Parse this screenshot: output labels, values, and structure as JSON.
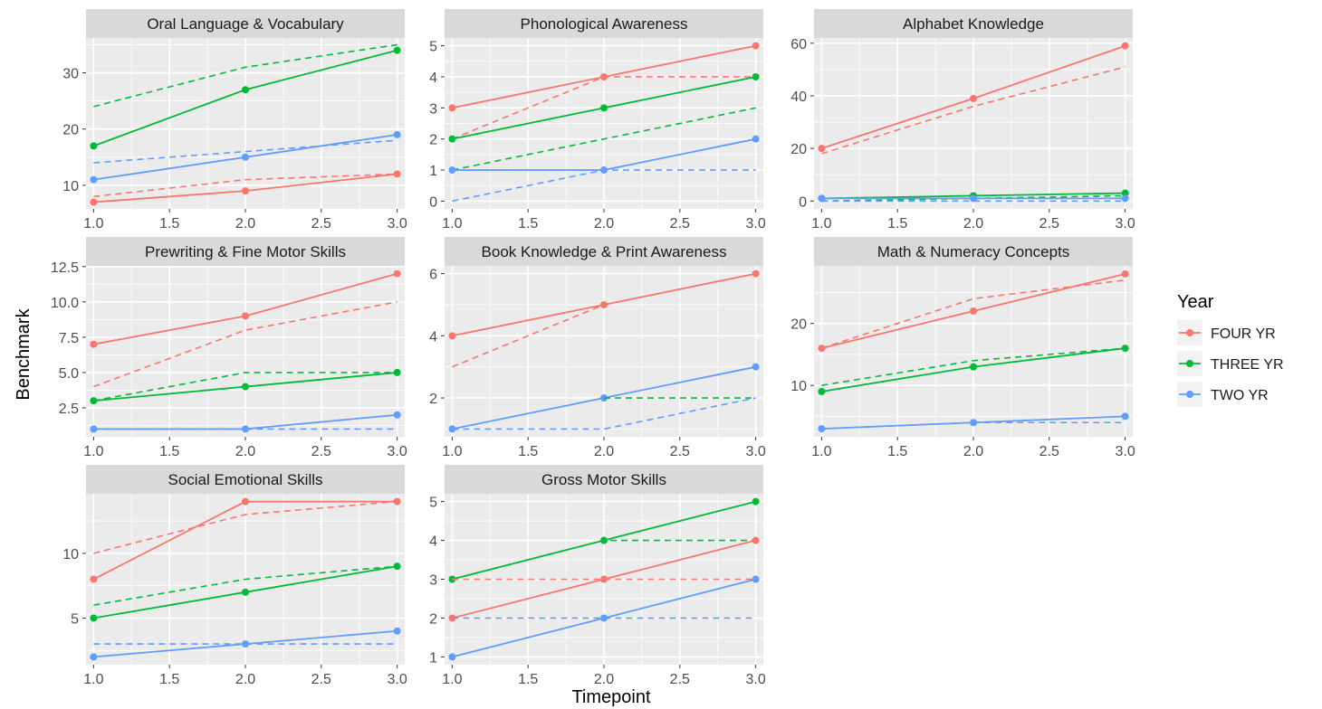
{
  "chart_data": {
    "type": "line",
    "xlabel": "Timepoint",
    "ylabel": "Benchmark",
    "x_ticks": [
      "1.0",
      "1.5",
      "2.0",
      "2.5",
      "3.0"
    ],
    "xlim": [
      0.95,
      3.05
    ],
    "legend": {
      "title": "Year",
      "placement": "right",
      "entries": [
        {
          "label": "FOUR YR",
          "color": "#F8766D"
        },
        {
          "label": "THREE YR",
          "color": "#00BA38"
        },
        {
          "label": "TWO YR",
          "color": "#619CFF"
        }
      ]
    },
    "line_styles": {
      "solid": "observed (points)",
      "dashed": "reference"
    },
    "panels": [
      {
        "title": "Oral Language & Vocabulary",
        "ylim": [
          5.8,
          36.2
        ],
        "y_ticks": [
          10,
          20,
          30
        ],
        "y_tick_labels": [
          "10",
          "20",
          "30"
        ],
        "series": [
          {
            "group": 0,
            "solid": [
              7,
              9,
              12
            ],
            "dashed": [
              8,
              11,
              12
            ]
          },
          {
            "group": 1,
            "solid": [
              17,
              27,
              34
            ],
            "dashed": [
              24,
              31,
              35
            ]
          },
          {
            "group": 2,
            "solid": [
              11,
              15,
              19
            ],
            "dashed": [
              14,
              16,
              18
            ]
          }
        ]
      },
      {
        "title": "Phonological Awareness",
        "ylim": [
          -0.25,
          5.25
        ],
        "y_ticks": [
          0,
          1,
          2,
          3,
          4,
          5
        ],
        "y_tick_labels": [
          "0",
          "1",
          "2",
          "3",
          "4",
          "5"
        ],
        "series": [
          {
            "group": 0,
            "solid": [
              3,
              4,
              5
            ],
            "dashed": [
              2,
              4,
              4
            ]
          },
          {
            "group": 1,
            "solid": [
              2,
              3,
              4
            ],
            "dashed": [
              1,
              2,
              3
            ]
          },
          {
            "group": 2,
            "solid": [
              1,
              1,
              2
            ],
            "dashed": [
              0,
              1,
              1
            ]
          }
        ]
      },
      {
        "title": "Alphabet Knowledge",
        "ylim": [
          -3,
          62
        ],
        "y_ticks": [
          0,
          20,
          40,
          60
        ],
        "y_tick_labels": [
          "0",
          "20",
          "40",
          "60"
        ],
        "series": [
          {
            "group": 0,
            "solid": [
              20,
              39,
              59
            ],
            "dashed": [
              18,
              36,
              51
            ]
          },
          {
            "group": 1,
            "solid": [
              1,
              2,
              3
            ],
            "dashed": [
              0,
              1,
              2
            ]
          },
          {
            "group": 2,
            "solid": [
              1,
              1,
              1
            ],
            "dashed": [
              0,
              0,
              0
            ]
          }
        ]
      },
      {
        "title": "Prewriting & Fine Motor Skills",
        "ylim": [
          0.45,
          12.55
        ],
        "y_ticks": [
          2.5,
          5,
          7.5,
          10,
          12.5
        ],
        "y_tick_labels": [
          "2.5",
          "5.0",
          "7.5",
          "10.0",
          "12.5"
        ],
        "series": [
          {
            "group": 0,
            "solid": [
              7,
              9,
              12
            ],
            "dashed": [
              4,
              8,
              10
            ]
          },
          {
            "group": 1,
            "solid": [
              3,
              4,
              5
            ],
            "dashed": [
              3,
              5,
              5
            ]
          },
          {
            "group": 2,
            "solid": [
              1,
              1,
              2
            ],
            "dashed": [
              1,
              1,
              1
            ]
          }
        ]
      },
      {
        "title": "Book Knowledge & Print Awareness",
        "ylim": [
          0.75,
          6.25
        ],
        "y_ticks": [
          2,
          4,
          6
        ],
        "y_tick_labels": [
          "2",
          "4",
          "6"
        ],
        "series": [
          {
            "group": 0,
            "solid": [
              4,
              5,
              6
            ],
            "dashed": [
              3,
              5,
              6
            ]
          },
          {
            "group": 2,
            "solid": [
              1,
              2,
              3
            ],
            "dashed": [
              1,
              1,
              2
            ]
          },
          {
            "group": 1,
            "solid": [],
            "dashed": [
              null,
              2,
              2
            ]
          }
        ]
      },
      {
        "title": "Math & Numeracy Concepts",
        "ylim": [
          1.7,
          29.3
        ],
        "y_ticks": [
          10,
          20
        ],
        "y_tick_labels": [
          "10",
          "20"
        ],
        "series": [
          {
            "group": 0,
            "solid": [
              16,
              22,
              28
            ],
            "dashed": [
              16,
              24,
              27
            ]
          },
          {
            "group": 1,
            "solid": [
              9,
              13,
              16
            ],
            "dashed": [
              10,
              14,
              16
            ]
          },
          {
            "group": 2,
            "solid": [
              3,
              4,
              5
            ],
            "dashed": [
              3,
              4,
              4
            ]
          }
        ]
      },
      {
        "title": "Social Emotional Skills",
        "ylim": [
          1.4,
          14.6
        ],
        "y_ticks": [
          5,
          10
        ],
        "y_tick_labels": [
          "5",
          "10"
        ],
        "series": [
          {
            "group": 0,
            "solid": [
              8,
              14,
              14
            ],
            "dashed": [
              10,
              13,
              14
            ]
          },
          {
            "group": 1,
            "solid": [
              5,
              7,
              9
            ],
            "dashed": [
              6,
              8,
              9
            ]
          },
          {
            "group": 2,
            "solid": [
              2,
              3,
              4
            ],
            "dashed": [
              3,
              3,
              3
            ]
          }
        ]
      },
      {
        "title": "Gross Motor Skills",
        "ylim": [
          0.8,
          5.2
        ],
        "y_ticks": [
          1,
          2,
          3,
          4,
          5
        ],
        "y_tick_labels": [
          "1",
          "2",
          "3",
          "4",
          "5"
        ],
        "series": [
          {
            "group": 1,
            "solid": [
              3,
              4,
              5
            ],
            "dashed": [
              3,
              4,
              4
            ]
          },
          {
            "group": 0,
            "solid": [
              2,
              3,
              4
            ],
            "dashed": [
              3,
              3,
              3
            ]
          },
          {
            "group": 2,
            "solid": [
              1,
              2,
              3
            ],
            "dashed": [
              2,
              2,
              2
            ]
          }
        ]
      }
    ]
  }
}
